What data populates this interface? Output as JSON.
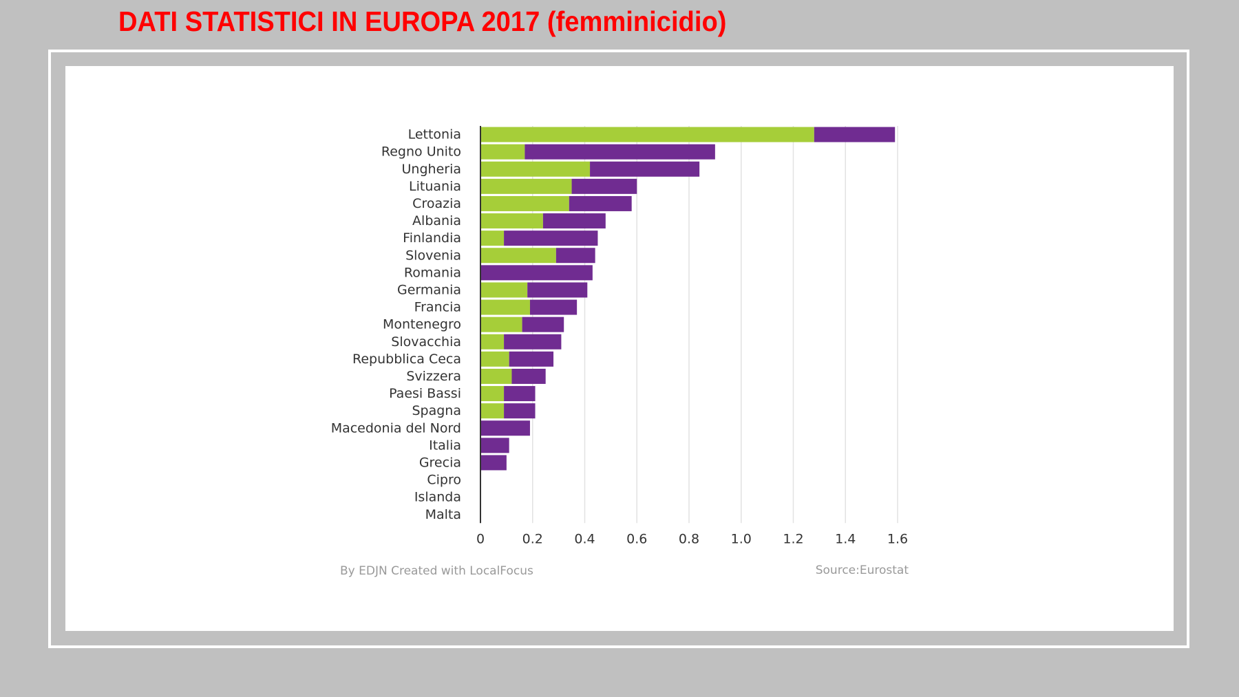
{
  "slide_title": "DATI STATISTICI IN EUROPA 2017 (femminicidio)",
  "chart_data": {
    "type": "bar",
    "orientation": "horizontal",
    "stacked": true,
    "categories": [
      "Lettonia",
      "Regno Unito",
      "Ungheria",
      "Lituania",
      "Croazia",
      "Albania",
      "Finlandia",
      "Slovenia",
      "Romania",
      "Germania",
      "Francia",
      "Montenegro",
      "Slovacchia",
      "Repubblica Ceca",
      "Svizzera",
      "Paesi Bassi",
      "Spagna",
      "Macedonia del Nord",
      "Italia",
      "Grecia",
      "Cipro",
      "Islanda",
      "Malta"
    ],
    "series": [
      {
        "name": "green",
        "color": "#a6ce39",
        "values": [
          1.28,
          0.17,
          0.42,
          0.35,
          0.34,
          0.24,
          0.09,
          0.29,
          0,
          0.18,
          0.19,
          0.16,
          0.09,
          0.11,
          0.12,
          0.09,
          0.09,
          0,
          0,
          0,
          0,
          0,
          0
        ]
      },
      {
        "name": "purple",
        "color": "#702c91",
        "values": [
          0.31,
          0.73,
          0.42,
          0.25,
          0.24,
          0.24,
          0.36,
          0.15,
          0.43,
          0.23,
          0.18,
          0.16,
          0.22,
          0.17,
          0.13,
          0.12,
          0.12,
          0.19,
          0.11,
          0.1,
          0,
          0,
          0
        ]
      }
    ],
    "xlim": [
      0,
      1.6
    ],
    "xticks": [
      "0",
      "0.2",
      "0.4",
      "0.6",
      "0.8",
      "1.0",
      "1.2",
      "1.4",
      "1.6"
    ],
    "grid": true,
    "credit": "By EDJN  Created with LocalFocus",
    "source": "Source:Eurostat"
  }
}
